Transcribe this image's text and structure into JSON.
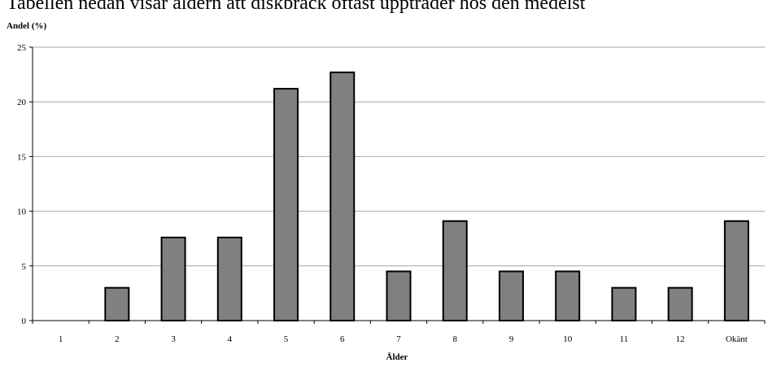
{
  "header_text": "Tabellen nedan visar åldern att diskbråck oftast uppträder hos den medelst",
  "chart_data": {
    "type": "bar",
    "categories": [
      "1",
      "2",
      "3",
      "4",
      "5",
      "6",
      "7",
      "8",
      "9",
      "10",
      "11",
      "12",
      "Okänt"
    ],
    "values": [
      0,
      3,
      7.6,
      7.6,
      21.2,
      22.7,
      4.5,
      9.1,
      4.5,
      4.5,
      3,
      3,
      9.1
    ],
    "title": "",
    "xlabel": "Ålder",
    "ylabel": "Andel (%)",
    "ylim": [
      0,
      25
    ],
    "yticks": [
      0,
      5,
      10,
      15,
      20,
      25
    ],
    "grid": true,
    "bar_color": "#808080",
    "bar_edge_color": "#000000",
    "grid_color": "#a6a6a6"
  }
}
